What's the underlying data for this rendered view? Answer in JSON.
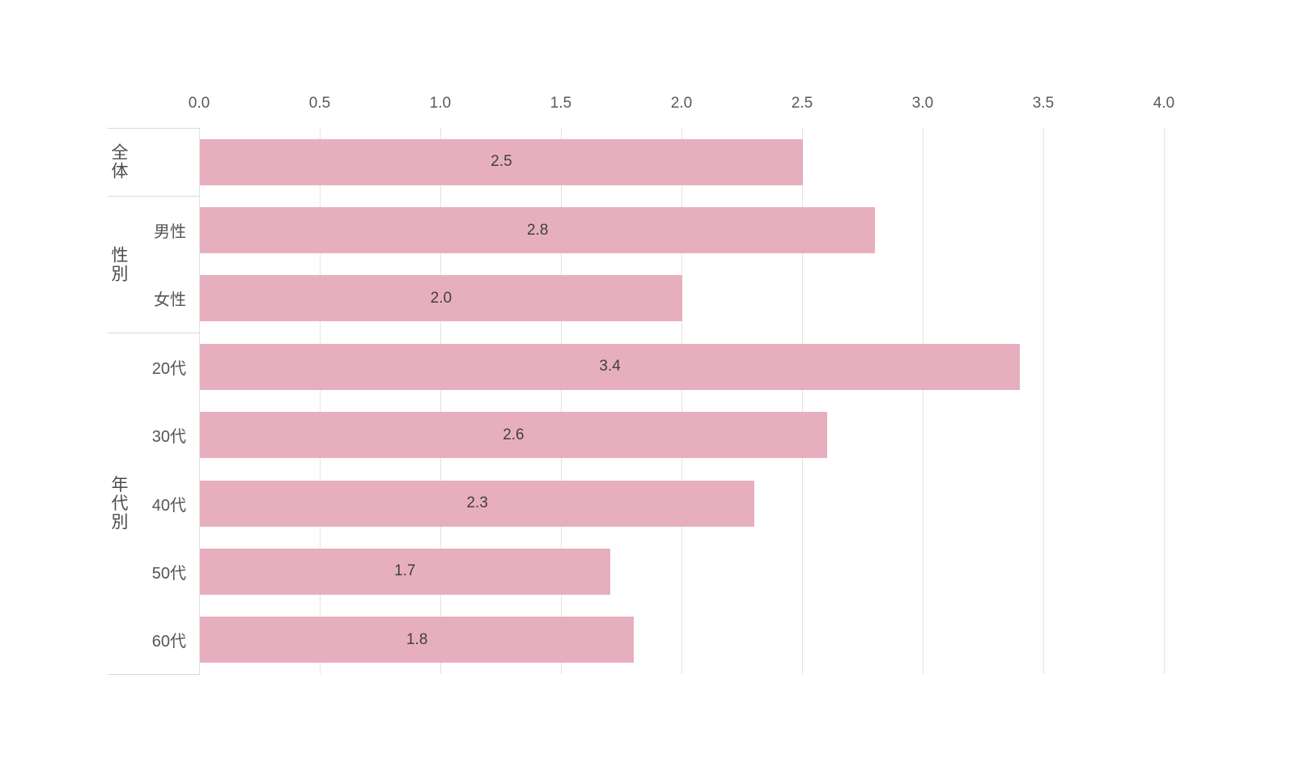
{
  "chart_data": {
    "type": "bar",
    "orientation": "horizontal",
    "title": "",
    "xlabel": "",
    "ylabel": "",
    "xlim": [
      0,
      4
    ],
    "x_ticks": [
      "0.0",
      "0.5",
      "1.0",
      "1.5",
      "2.0",
      "2.5",
      "3.0",
      "3.5",
      "4.0"
    ],
    "grid": "vertical",
    "legend_position": "none",
    "categories": [
      "全体",
      "男性",
      "女性",
      "20代",
      "30代",
      "40代",
      "50代",
      "60代"
    ],
    "values": [
      2.5,
      2.8,
      2.0,
      3.4,
      2.6,
      2.3,
      1.7,
      1.8
    ],
    "groups": [
      {
        "label": "全体",
        "rows": [
          {
            "label": "",
            "value": 2.5,
            "value_label": "2.5"
          }
        ]
      },
      {
        "label": "性別",
        "rows": [
          {
            "label": "男性",
            "value": 2.8,
            "value_label": "2.8"
          },
          {
            "label": "女性",
            "value": 2.0,
            "value_label": "2.0"
          }
        ]
      },
      {
        "label": "年代別",
        "rows": [
          {
            "label": "20代",
            "value": 3.4,
            "value_label": "3.4"
          },
          {
            "label": "30代",
            "value": 2.6,
            "value_label": "2.6"
          },
          {
            "label": "40代",
            "value": 2.3,
            "value_label": "2.3"
          },
          {
            "label": "50代",
            "value": 1.7,
            "value_label": "1.7"
          },
          {
            "label": "60代",
            "value": 1.8,
            "value_label": "1.8"
          }
        ]
      }
    ]
  },
  "style": {
    "bar_color": "#e7afbe",
    "grid_color": "#e3e3e3",
    "divider_color": "#d8d8d8",
    "tick_text_color": "#595959",
    "value_text_color": "#404040",
    "row_label_color": "#555555",
    "group_label_color": "#4a4a4a",
    "background": "#ffffff"
  }
}
